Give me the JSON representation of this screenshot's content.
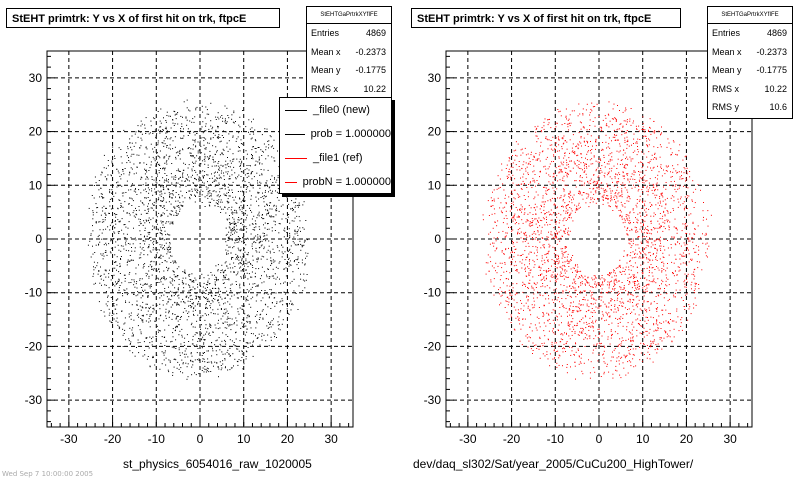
{
  "chart_data": [
    {
      "type": "scatter",
      "title": "StEHT primtrk: Y vs X of first hit on trk, ftpcE",
      "xlabel": "st_physics_6054016_raw_1020005",
      "ylabel": "",
      "xlim": [
        -35,
        35
      ],
      "ylim": [
        -35,
        35
      ],
      "xticks": [
        -30,
        -20,
        -10,
        0,
        10,
        20,
        30
      ],
      "yticks": [
        -30,
        -20,
        -10,
        0,
        10,
        20,
        30
      ],
      "grid": true,
      "marker_color": "#000000",
      "seed": 17,
      "stats": {
        "header": "StEHTGaPrtrkXYfIFE",
        "rows": [
          {
            "label": "Entries",
            "value": "4869"
          },
          {
            "label": "Mean x",
            "value": "-0.2373"
          },
          {
            "label": "Mean y",
            "value": "-0.1775"
          },
          {
            "label": "RMS x",
            "value": "10.22"
          }
        ]
      },
      "legend": {
        "placement": "top-right",
        "entries": [
          {
            "label": "_file0 (new)",
            "color": "#000000"
          },
          {
            "label": "prob = 1.000000",
            "color": "#000000"
          },
          {
            "label": "_file1 (ref)",
            "color": "#ff0000"
          },
          {
            "label": "probN = 1.000000",
            "color": "#ff0000"
          }
        ]
      }
    },
    {
      "type": "scatter",
      "title": "StEHT primtrk: Y vs X of first hit on trk, ftpcE",
      "xlabel": "dev/daq_sl302/Sat/year_2005/CuCu200_HighTower/",
      "ylabel": "",
      "xlim": [
        -35,
        35
      ],
      "ylim": [
        -35,
        35
      ],
      "xticks": [
        -30,
        -20,
        -10,
        0,
        10,
        20,
        30
      ],
      "yticks": [
        -30,
        -20,
        -10,
        0,
        10,
        20,
        30
      ],
      "grid": true,
      "marker_color": "#ff0000",
      "seed": 53,
      "stats": {
        "header": "StEHTGaPrtrkXYfIFE",
        "rows": [
          {
            "label": "Entries",
            "value": "4869"
          },
          {
            "label": "Mean x",
            "value": "-0.2373"
          },
          {
            "label": "Mean y",
            "value": "-0.1775"
          },
          {
            "label": "RMS x",
            "value": "10.22"
          },
          {
            "label": "RMS y",
            "value": "10.6"
          }
        ]
      }
    }
  ],
  "footer_note": "Wed Sep 7 10:00:00 2005"
}
